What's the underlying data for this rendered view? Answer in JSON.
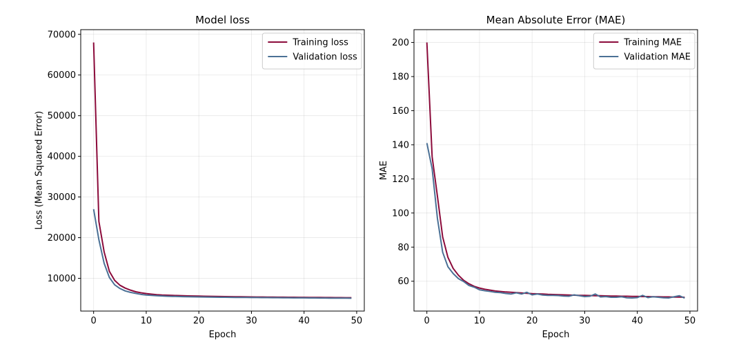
{
  "chart_data": [
    {
      "type": "line",
      "title": "Model loss",
      "xlabel": "Epoch",
      "ylabel": "Loss (Mean Squared Error)",
      "xlim": [
        -2.45,
        51.45
      ],
      "ylim": [
        1950,
        71150
      ],
      "xticks": [
        0,
        10,
        20,
        30,
        40,
        50
      ],
      "yticks": [
        10000,
        20000,
        30000,
        40000,
        50000,
        60000,
        70000
      ],
      "grid": true,
      "legend": "upper right",
      "series": [
        {
          "name": "Training loss",
          "color": "#8b0a3a",
          "x": [
            0,
            1,
            2,
            3,
            4,
            5,
            6,
            7,
            8,
            9,
            10,
            11,
            12,
            13,
            14,
            15,
            16,
            17,
            18,
            19,
            20,
            21,
            22,
            23,
            24,
            25,
            26,
            27,
            28,
            29,
            30,
            31,
            32,
            33,
            34,
            35,
            36,
            37,
            38,
            39,
            40,
            41,
            42,
            43,
            44,
            45,
            46,
            47,
            48,
            49
          ],
          "y": [
            68000,
            24000,
            16500,
            11700,
            9500,
            8300,
            7600,
            7100,
            6700,
            6450,
            6250,
            6100,
            5980,
            5900,
            5850,
            5800,
            5760,
            5720,
            5690,
            5660,
            5630,
            5600,
            5580,
            5560,
            5540,
            5520,
            5500,
            5480,
            5460,
            5440,
            5420,
            5410,
            5400,
            5390,
            5380,
            5370,
            5360,
            5350,
            5340,
            5330,
            5320,
            5310,
            5300,
            5290,
            5280,
            5270,
            5260,
            5250,
            5240,
            5230
          ]
        },
        {
          "name": "Validation loss",
          "color": "#4a7095",
          "x": [
            0,
            1,
            2,
            3,
            4,
            5,
            6,
            7,
            8,
            9,
            10,
            11,
            12,
            13,
            14,
            15,
            16,
            17,
            18,
            19,
            20,
            21,
            22,
            23,
            24,
            25,
            26,
            27,
            28,
            29,
            30,
            31,
            32,
            33,
            34,
            35,
            36,
            37,
            38,
            39,
            40,
            41,
            42,
            43,
            44,
            45,
            46,
            47,
            48,
            49
          ],
          "y": [
            27000,
            19500,
            13700,
            10200,
            8400,
            7500,
            6900,
            6550,
            6300,
            6050,
            5900,
            5800,
            5720,
            5650,
            5600,
            5560,
            5540,
            5500,
            5470,
            5450,
            5420,
            5400,
            5380,
            5370,
            5350,
            5340,
            5330,
            5310,
            5300,
            5290,
            5280,
            5270,
            5260,
            5250,
            5240,
            5230,
            5220,
            5210,
            5200,
            5200,
            5190,
            5180,
            5170,
            5160,
            5150,
            5140,
            5140,
            5130,
            5120,
            5110
          ]
        }
      ]
    },
    {
      "type": "line",
      "title": "Mean Absolute Error (MAE)",
      "xlabel": "Epoch",
      "ylabel": "MAE",
      "xlim": [
        -2.45,
        51.45
      ],
      "ylim": [
        42.5,
        207.5
      ],
      "xticks": [
        0,
        10,
        20,
        30,
        40,
        50
      ],
      "yticks": [
        60,
        80,
        100,
        120,
        140,
        160,
        180,
        200
      ],
      "grid": true,
      "legend": "upper right",
      "series": [
        {
          "name": "Training MAE",
          "color": "#8b0a3a",
          "x": [
            0,
            1,
            2,
            3,
            4,
            5,
            6,
            7,
            8,
            9,
            10,
            11,
            12,
            13,
            14,
            15,
            16,
            17,
            18,
            19,
            20,
            21,
            22,
            23,
            24,
            25,
            26,
            27,
            28,
            29,
            30,
            31,
            32,
            33,
            34,
            35,
            36,
            37,
            38,
            39,
            40,
            41,
            42,
            43,
            44,
            45,
            46,
            47,
            48,
            49
          ],
          "y": [
            200,
            133,
            110,
            86,
            74,
            67.5,
            63.5,
            60.5,
            58.5,
            57,
            56,
            55.3,
            54.8,
            54.3,
            54,
            53.7,
            53.5,
            53.3,
            53.1,
            52.9,
            52.7,
            52.6,
            52.5,
            52.3,
            52.2,
            52.1,
            52,
            51.9,
            51.8,
            51.7,
            51.7,
            51.6,
            51.5,
            51.5,
            51.4,
            51.3,
            51.3,
            51.2,
            51.2,
            51.1,
            51.1,
            51,
            51,
            50.9,
            50.9,
            50.8,
            50.8,
            50.7,
            50.7,
            50.6
          ]
        },
        {
          "name": "Validation MAE",
          "color": "#4a7095",
          "x": [
            0,
            1,
            2,
            3,
            4,
            5,
            6,
            7,
            8,
            9,
            10,
            11,
            12,
            13,
            14,
            15,
            16,
            17,
            18,
            19,
            20,
            21,
            22,
            23,
            24,
            25,
            26,
            27,
            28,
            29,
            30,
            31,
            32,
            33,
            34,
            35,
            36,
            37,
            38,
            39,
            40,
            41,
            42,
            43,
            44,
            45,
            46,
            47,
            48,
            49
          ],
          "y": [
            141,
            126,
            97,
            77,
            68.5,
            64.5,
            61.5,
            59.8,
            57.5,
            56.5,
            55,
            54.4,
            54,
            53.5,
            53.3,
            52.8,
            52.5,
            53.2,
            52.5,
            53.5,
            52,
            52.5,
            51.9,
            51.7,
            51.7,
            51.6,
            51.3,
            51.2,
            52,
            51.5,
            51,
            51.2,
            52.5,
            50.8,
            51,
            50.6,
            50.6,
            50.9,
            50.3,
            50.2,
            50.4,
            51.7,
            50.4,
            50.9,
            50.6,
            50.3,
            50.2,
            50.9,
            51.5,
            50.1
          ]
        }
      ]
    }
  ]
}
